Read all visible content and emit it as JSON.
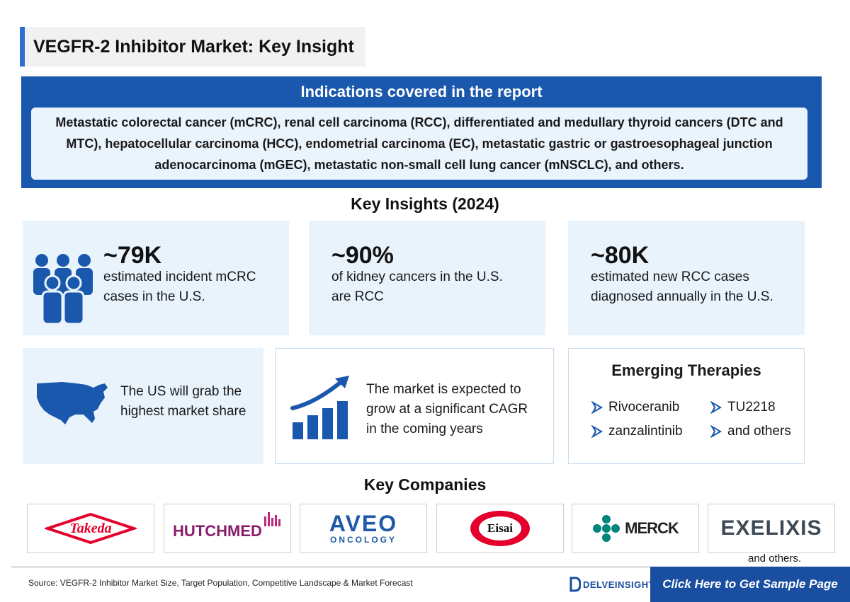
{
  "title": "VEGFR-2 Inhibitor Market: Key Insight",
  "indications": {
    "heading": "Indications covered in the report",
    "text": "Metastatic colorectal cancer (mCRC), renal cell carcinoma (RCC), differentiated and medullary thyroid cancers (DTC and MTC), hepatocellular carcinoma (HCC), endometrial carcinoma (EC), metastatic gastric or gastroesophageal junction adenocarcinoma (mGEC), metastatic non-small cell lung cancer (mNSCLC), and others."
  },
  "key_insights": {
    "heading": "Key Insights (2024)",
    "stats": [
      {
        "value": "~79K",
        "line1": "estimated incident mCRC",
        "line2": "cases in the U.S.",
        "icon": "people-group-icon"
      },
      {
        "value": "~90%",
        "line1": "of kidney cancers in the U.S.",
        "line2": "are RCC"
      },
      {
        "value": "~80K",
        "line1": "estimated new RCC cases",
        "line2": "diagnosed annually in the U.S."
      }
    ],
    "us_share": {
      "line1": "The US will grab the",
      "line2": "highest market share",
      "icon": "usa-map-icon"
    },
    "growth": {
      "line1": "The market is expected to",
      "line2": "grow at a significant CAGR",
      "line3": "in the coming years",
      "icon": "growth-chart-icon"
    },
    "emerging": {
      "heading": "Emerging Therapies",
      "items": [
        "Rivoceranib",
        "TU2218",
        "zanzalintinib",
        "and others"
      ]
    }
  },
  "key_companies": {
    "heading": "Key Companies",
    "logos": [
      "Takeda",
      "HUTCHMED",
      "AVEO",
      "ONCOLOGY",
      "Eisai",
      "MERCK",
      "EXELIXIS"
    ],
    "and_others": "and others."
  },
  "footer": {
    "source": "Source: VEGFR-2 Inhibitor Market Size, Target Population, Competitive Landscape & Market Forecast",
    "brand": "DELVEINSIGHT",
    "cta": "Click Here to Get Sample Page"
  },
  "colors": {
    "primary_blue": "#1a58ad",
    "light_blue": "#e8f3fc",
    "takeda_red": "#e4002b",
    "hutchmed_purple": "#8a1d6b",
    "aveo_blue": "#1e5aa8",
    "merck_teal": "#00857c"
  }
}
